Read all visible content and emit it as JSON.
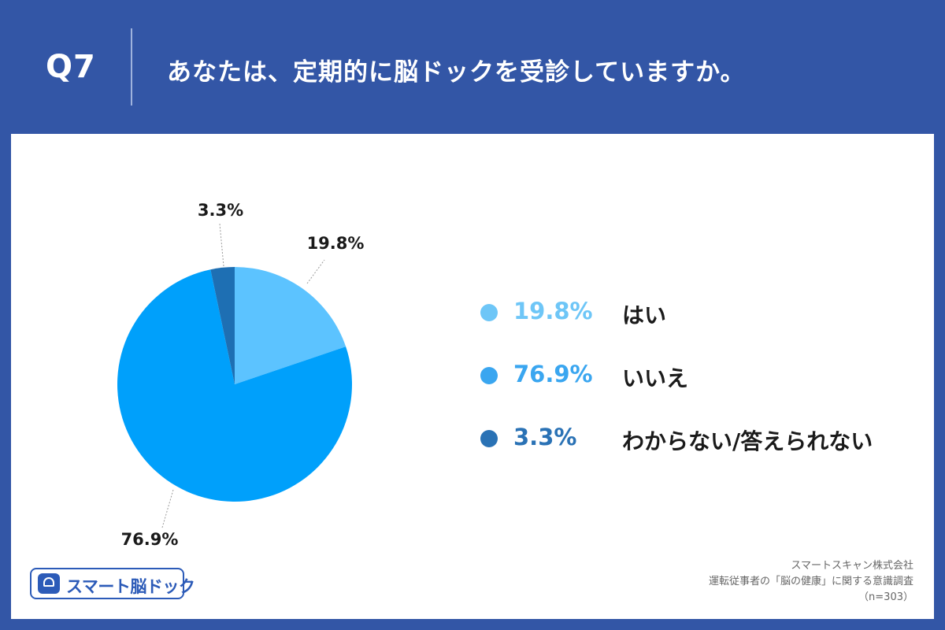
{
  "header": {
    "qnum": "Q7",
    "title": "あなたは、定期的に脳ドックを受診していますか。"
  },
  "chart_data": {
    "type": "pie",
    "title": "",
    "slices": [
      {
        "label": "はい",
        "value": 19.8,
        "pct_label": "19.8%",
        "color": "#5cc3ff",
        "legend_color": "#6ec6f7"
      },
      {
        "label": "いいえ",
        "value": 76.9,
        "pct_label": "76.9%",
        "color": "#00a0fb",
        "legend_color": "#3aa6f0"
      },
      {
        "label": "わからない/答えられない",
        "value": 3.3,
        "pct_label": "3.3%",
        "color": "#1e6fb3",
        "legend_color": "#2a72b5"
      }
    ],
    "start_angle_deg": 0,
    "direction": "clockwise",
    "legend_position": "right"
  },
  "logo": {
    "text": "スマート脳ドック"
  },
  "source": {
    "company": "スマートスキャン株式会社",
    "survey": "運転従事者の「脳の健康」に関する意識調査",
    "sample": "（n=303）"
  }
}
